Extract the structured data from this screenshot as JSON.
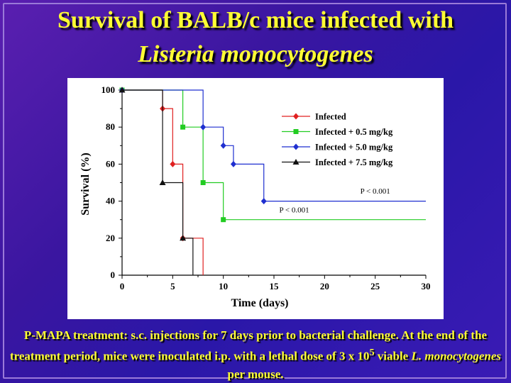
{
  "slide": {
    "title_line1": "Survival of BALB/c mice infected with",
    "title_line2": "Listeria monocytogenes",
    "caption_part1": "P-MAPA treatment: s.c. injections for 7 days prior to bacterial challenge. At the end of the treatment period, mice were inoculated i.p. with a lethal dose of 3 x 10",
    "caption_sup": "5",
    "caption_part2": " viable ",
    "caption_italic": "L. monocytogenes",
    "caption_part3": " per mouse."
  },
  "chart_data": {
    "type": "line",
    "step": true,
    "xlabel": "Time (days)",
    "ylabel": "Survival (%)",
    "xlim": [
      0,
      30
    ],
    "ylim": [
      0,
      100
    ],
    "xticks": [
      0,
      5,
      10,
      15,
      20,
      25,
      30
    ],
    "yticks": [
      0,
      20,
      40,
      60,
      80,
      100
    ],
    "grid": false,
    "legend_position": "top-right",
    "series": [
      {
        "name": "Infected",
        "color": "#e02020",
        "marker": "diamond",
        "x": [
          0,
          4,
          5,
          6,
          8
        ],
        "y": [
          100,
          90,
          60,
          20,
          0
        ]
      },
      {
        "name": "Infected + 0.5 mg/kg",
        "color": "#22cc22",
        "marker": "square",
        "x": [
          0,
          6,
          8,
          10,
          30
        ],
        "y": [
          100,
          80,
          50,
          30,
          30
        ]
      },
      {
        "name": "Infected + 5.0 mg/kg",
        "color": "#1f2fd0",
        "marker": "diamond",
        "x": [
          0,
          8,
          10,
          11,
          14,
          30
        ],
        "y": [
          100,
          80,
          70,
          60,
          40,
          40
        ]
      },
      {
        "name": "Infected + 7.5 mg/kg",
        "color": "#111111",
        "marker": "triangle",
        "x": [
          0,
          4,
          6,
          7
        ],
        "y": [
          100,
          50,
          20,
          0
        ]
      }
    ],
    "annotations": [
      {
        "text": "P < 0.001",
        "x": 25,
        "y": 44
      },
      {
        "text": "P < 0.001",
        "x": 17,
        "y": 34
      }
    ]
  }
}
